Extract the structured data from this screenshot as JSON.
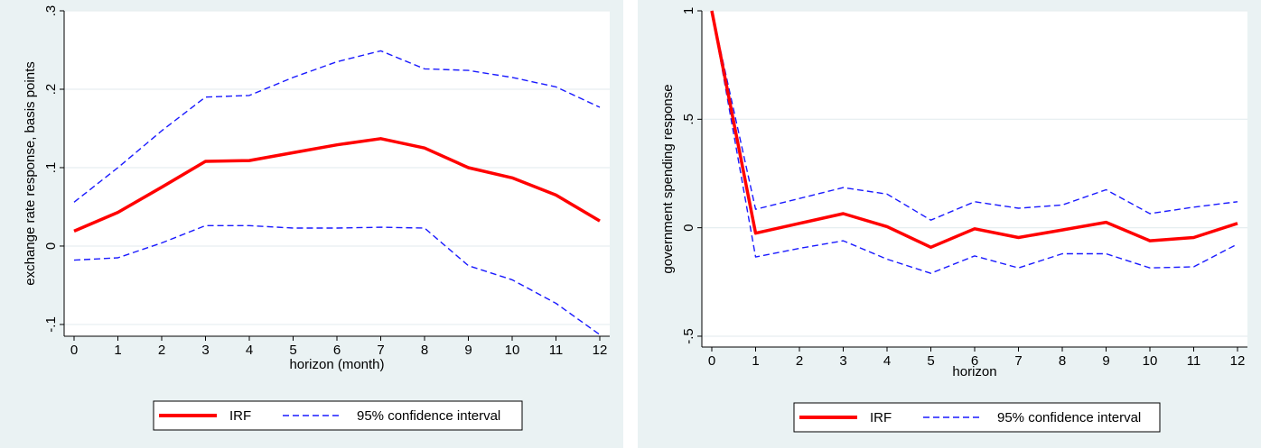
{
  "colors": {
    "irf": "#ff0000",
    "ci": "#1a1aff",
    "panel_bg": "#eaf2f3",
    "grid": "#e6eef0"
  },
  "chart_data": [
    {
      "type": "line",
      "xlabel": "horizon (month)",
      "ylabel": "exchange rate response, basis points",
      "x": [
        0,
        1,
        2,
        3,
        4,
        5,
        6,
        7,
        8,
        9,
        10,
        11,
        12
      ],
      "xticks": [
        "0",
        "1",
        "2",
        "3",
        "4",
        "5",
        "6",
        "7",
        "8",
        "9",
        "10",
        "11",
        "12"
      ],
      "yticks": [
        {
          "value": -0.1,
          "label": "-.1"
        },
        {
          "value": 0,
          "label": "0"
        },
        {
          "value": 0.1,
          "label": ".1"
        },
        {
          "value": 0.2,
          "label": ".2"
        },
        {
          "value": 0.3,
          "label": ".3"
        }
      ],
      "xlim": [
        0,
        12
      ],
      "ylim": [
        -0.115,
        0.3
      ],
      "grid": true,
      "legend_position": "bottom",
      "series": [
        {
          "name": "IRF",
          "style": "solid",
          "values": [
            0.019,
            0.043,
            0.075,
            0.108,
            0.109,
            0.119,
            0.129,
            0.137,
            0.125,
            0.1,
            0.087,
            0.065,
            0.032
          ]
        },
        {
          "name": "95% confidence interval",
          "style": "dashed",
          "values": [
            0.056,
            0.1,
            0.147,
            0.19,
            0.192,
            0.215,
            0.235,
            0.249,
            0.226,
            0.224,
            0.215,
            0.203,
            0.177
          ]
        },
        {
          "style": "dashed",
          "values": [
            -0.018,
            -0.015,
            0.004,
            0.026,
            0.026,
            0.023,
            0.023,
            0.024,
            0.023,
            -0.025,
            -0.043,
            -0.073,
            -0.113
          ]
        }
      ]
    },
    {
      "type": "line",
      "xlabel": "horizon",
      "ylabel": "government spending response",
      "x": [
        0,
        1,
        2,
        3,
        4,
        5,
        6,
        7,
        8,
        9,
        10,
        11,
        12
      ],
      "xticks": [
        "0",
        "1",
        "2",
        "3",
        "4",
        "5",
        "6",
        "7",
        "8",
        "9",
        "10",
        "11",
        "12"
      ],
      "yticks": [
        {
          "value": -0.5,
          "label": "-.5"
        },
        {
          "value": 0,
          "label": "0"
        },
        {
          "value": 0.5,
          "label": ".5"
        },
        {
          "value": 1,
          "label": "1"
        }
      ],
      "xlim": [
        0,
        12
      ],
      "ylim": [
        -0.55,
        1.0
      ],
      "grid": true,
      "legend_position": "bottom",
      "series": [
        {
          "name": "IRF",
          "style": "solid",
          "values": [
            1.0,
            -0.025,
            0.02,
            0.065,
            0.005,
            -0.09,
            -0.005,
            -0.045,
            -0.01,
            0.025,
            -0.06,
            -0.045,
            0.02
          ]
        },
        {
          "name": "95% confidence interval",
          "style": "dashed",
          "values": [
            1.0,
            0.085,
            0.135,
            0.185,
            0.155,
            0.035,
            0.12,
            0.09,
            0.105,
            0.175,
            0.065,
            0.095,
            0.12
          ]
        },
        {
          "style": "dashed",
          "values": [
            1.0,
            -0.135,
            -0.095,
            -0.06,
            -0.145,
            -0.21,
            -0.13,
            -0.185,
            -0.12,
            -0.12,
            -0.185,
            -0.18,
            -0.075
          ]
        }
      ]
    }
  ]
}
